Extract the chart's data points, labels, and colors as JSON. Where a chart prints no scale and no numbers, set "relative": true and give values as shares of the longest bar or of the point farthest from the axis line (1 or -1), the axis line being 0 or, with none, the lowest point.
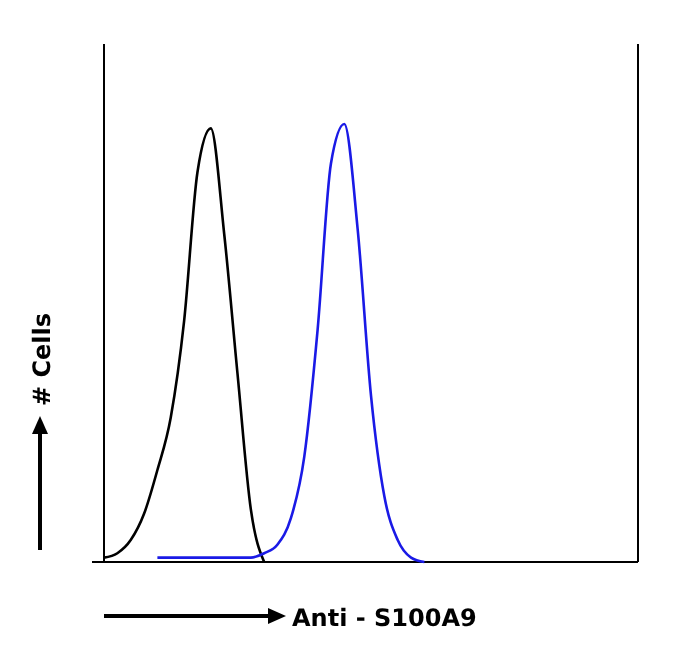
{
  "chart_data": {
    "type": "line",
    "relative": true,
    "xlabel": "Anti - S100A9",
    "ylabel": "# Cells",
    "categories": [
      null,
      null,
      null,
      null,
      null,
      null,
      null,
      null,
      null,
      null,
      null,
      null,
      null,
      null,
      null,
      null,
      null,
      null,
      null,
      null,
      null,
      null,
      null,
      null,
      null,
      null,
      null,
      null,
      null,
      null,
      null,
      null,
      null,
      null,
      null,
      null,
      null,
      null,
      null,
      null,
      null
    ],
    "series": [
      {
        "color": "#000000",
        "values": [
          0.01,
          0.02,
          0.05,
          0.11,
          0.21,
          0.33,
          0.55,
          0.89,
          0.99,
          0.75,
          0.43,
          0.12,
          0,
          null,
          null,
          null,
          null,
          null,
          null,
          null,
          null,
          null,
          null,
          null,
          null,
          null,
          null,
          null,
          null,
          null,
          null,
          null,
          null,
          null,
          null,
          null,
          null,
          null,
          null,
          null,
          null
        ]
      },
      {
        "color": "#1a1ae6",
        "values": [
          null,
          null,
          null,
          null,
          0.01,
          0.01,
          0.01,
          0.01,
          0.01,
          0.01,
          0.01,
          0.01,
          0.02,
          0.04,
          0.1,
          0.24,
          0.53,
          0.91,
          1,
          0.76,
          0.38,
          0.15,
          0.05,
          0.01,
          0,
          null,
          null,
          null,
          null,
          null,
          null,
          null,
          null,
          null,
          null,
          null,
          null,
          null,
          null,
          null,
          null
        ]
      }
    ]
  }
}
